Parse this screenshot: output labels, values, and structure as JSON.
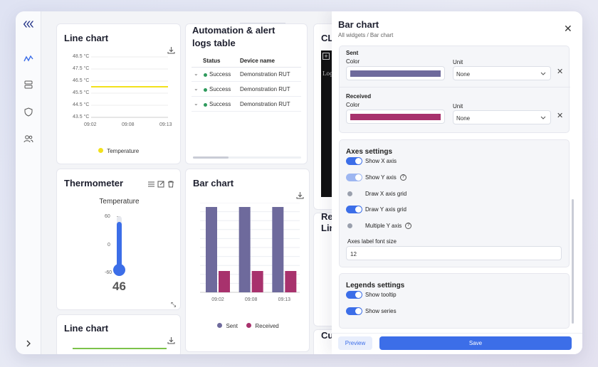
{
  "panel": {
    "title": "Bar chart",
    "breadcrumb": "All widgets / Bar chart",
    "sent": {
      "label": "Sent",
      "color_label": "Color",
      "color": "#6e6a9c",
      "unit_label": "Unit",
      "unit_value": "None"
    },
    "received": {
      "label": "Received",
      "color_label": "Color",
      "color": "#a8326d",
      "unit_label": "Unit",
      "unit_value": "None"
    },
    "axes": {
      "title": "Axes settings",
      "show_x": {
        "label": "Show X axis",
        "state": "on"
      },
      "show_y": {
        "label": "Show Y axis",
        "state": "semi"
      },
      "x_grid": {
        "label": "Draw X axis grid",
        "state": "off"
      },
      "y_grid": {
        "label": "Draw Y axis grid",
        "state": "on"
      },
      "multi_y": {
        "label": "Multiple Y axis",
        "state": "off"
      },
      "font_size_label": "Axes label font size",
      "font_size_value": "12"
    },
    "legends": {
      "title": "Legends settings",
      "tooltip": {
        "label": "Show tooltip",
        "state": "on"
      },
      "series": {
        "label": "Show series",
        "state": "on"
      }
    },
    "preview_label": "Preview",
    "save_label": "Save"
  },
  "widgets": {
    "line_chart_1": {
      "title": "Line chart",
      "legend": "Temperature",
      "y_ticks": [
        "48.5 °C",
        "47.5 °C",
        "46.5 °C",
        "45.5 °C",
        "44.5 °C",
        "43.5 °C"
      ],
      "x_ticks": [
        "09:02",
        "09:08",
        "09:13"
      ]
    },
    "automation": {
      "title_line1": "Automation & alert",
      "title_line2": "logs table",
      "col_status": "Status",
      "col_device": "Device name",
      "rows": [
        {
          "status": "Success",
          "device": "Demonstration RUT"
        },
        {
          "status": "Success",
          "device": "Demonstration RUT"
        },
        {
          "status": "Success",
          "device": "Demonstration RUT"
        }
      ]
    },
    "cli": {
      "title": "CL",
      "log_text": "Log"
    },
    "thermometer": {
      "title": "Thermometer",
      "label": "Temperature",
      "ticks": [
        "60",
        "0",
        "-60"
      ],
      "value": "46"
    },
    "bar_chart": {
      "title": "Bar chart",
      "legend_sent": "Sent",
      "legend_received": "Received"
    },
    "line_chart_2": {
      "title": "Line chart"
    },
    "remote": {
      "title_line1": "Rem",
      "title_line2": "Lin"
    },
    "custom": {
      "title": "Cu"
    }
  },
  "chart_data": {
    "type": "bar",
    "categories": [
      "09:02",
      "09:08",
      "09:13"
    ],
    "series": [
      {
        "name": "Sent",
        "values": [
          100,
          100,
          100
        ],
        "color": "#6e6a9c"
      },
      {
        "name": "Received",
        "values": [
          25,
          25,
          25
        ],
        "color": "#a8326d"
      }
    ],
    "ylim": [
      0,
      105
    ],
    "grid": "y"
  }
}
